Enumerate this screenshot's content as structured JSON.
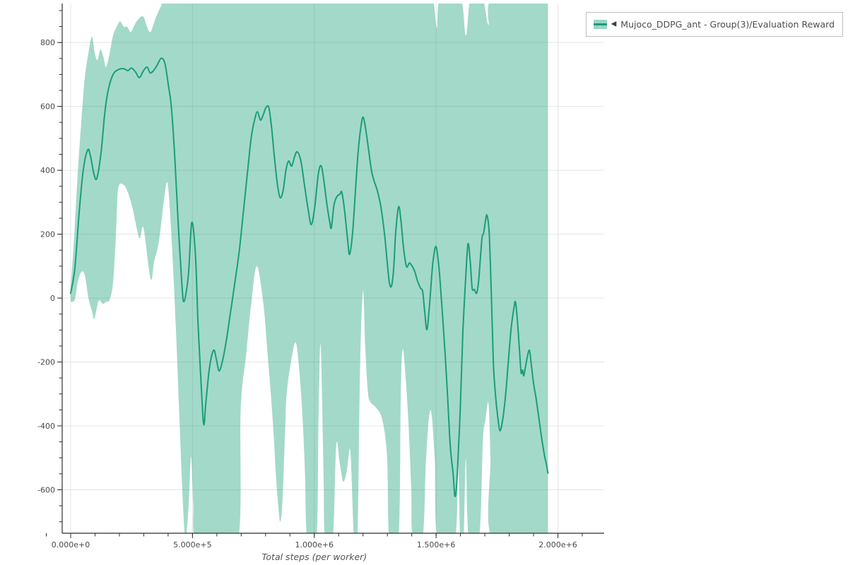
{
  "page": {
    "background": "#ffffff"
  },
  "legend": {
    "marker": "◀",
    "label": "Mujoco_DDPG_ant - Group(3)/Evaluation Reward",
    "swatch_fill": "rgba(26,161,121,0.45)",
    "swatch_line": "#1a9e78",
    "border_color": "#bdbdbd",
    "position": "top-right"
  },
  "axes": {
    "axis_color": "#2e2e2e",
    "grid_color": "#e4e4e4",
    "tick_label_color": "#4a4a4a",
    "axis_label_color": "#555555"
  },
  "chart_data": {
    "type": "line",
    "title": "",
    "xlabel": "Total steps (per worker)",
    "ylabel": "",
    "grid": true,
    "legend_position": "top-right",
    "series_name": "Mujoco_DDPG_ant - Group(3)/Evaluation Reward",
    "line_color": "#1a9e78",
    "band_color": "rgba(26,161,121,0.40)",
    "xlim": [
      -34800,
      2190000
    ],
    "ylim": [
      -736,
      922
    ],
    "xticks": {
      "major": [
        {
          "v": 0,
          "label": "0.000e+0"
        },
        {
          "v": 500000,
          "label": "5.000e+5"
        },
        {
          "v": 1000000,
          "label": "1.000e+6"
        },
        {
          "v": 1500000,
          "label": "1.500e+6"
        },
        {
          "v": 2000000,
          "label": "2.000e+6"
        }
      ],
      "minor_start": -100000,
      "minor_end": 2100000,
      "minor_step": 100000
    },
    "yticks": {
      "major": [
        {
          "v": 800,
          "label": "800"
        },
        {
          "v": 600,
          "label": "600"
        },
        {
          "v": 400,
          "label": "400"
        },
        {
          "v": 200,
          "label": "200"
        },
        {
          "v": 0,
          "label": "0"
        },
        {
          "v": -200,
          "label": "-200"
        },
        {
          "v": -400,
          "label": "-400"
        },
        {
          "v": -600,
          "label": "-600"
        }
      ],
      "minor_start": -700,
      "minor_end": 900,
      "minor_step": 50
    },
    "mean": [
      [
        0,
        15
      ],
      [
        17000,
        93
      ],
      [
        35000,
        270
      ],
      [
        52000,
        402
      ],
      [
        70000,
        464
      ],
      [
        81000,
        446
      ],
      [
        96000,
        387
      ],
      [
        108000,
        376
      ],
      [
        125000,
        457
      ],
      [
        140000,
        579
      ],
      [
        154000,
        650
      ],
      [
        174000,
        700
      ],
      [
        198000,
        716
      ],
      [
        218000,
        718
      ],
      [
        235000,
        712
      ],
      [
        250000,
        720
      ],
      [
        267000,
        707
      ],
      [
        282000,
        690
      ],
      [
        299000,
        712
      ],
      [
        314000,
        723
      ],
      [
        326000,
        705
      ],
      [
        340000,
        712
      ],
      [
        355000,
        729
      ],
      [
        372000,
        751
      ],
      [
        387000,
        734
      ],
      [
        401000,
        667
      ],
      [
        413000,
        601
      ],
      [
        427000,
        446
      ],
      [
        442000,
        225
      ],
      [
        456000,
        49
      ],
      [
        465000,
        -11
      ],
      [
        483000,
        71
      ],
      [
        497000,
        236
      ],
      [
        512000,
        137
      ],
      [
        523000,
        -84
      ],
      [
        535000,
        -261
      ],
      [
        546000,
        -395
      ],
      [
        555000,
        -327
      ],
      [
        570000,
        -217
      ],
      [
        587000,
        -163
      ],
      [
        599000,
        -195
      ],
      [
        610000,
        -228
      ],
      [
        625000,
        -190
      ],
      [
        640000,
        -128
      ],
      [
        657000,
        -40
      ],
      [
        674000,
        49
      ],
      [
        692000,
        148
      ],
      [
        709000,
        270
      ],
      [
        727000,
        402
      ],
      [
        741000,
        502
      ],
      [
        756000,
        561
      ],
      [
        767000,
        583
      ],
      [
        779000,
        557
      ],
      [
        791000,
        575
      ],
      [
        802000,
        597
      ],
      [
        814000,
        595
      ],
      [
        826000,
        524
      ],
      [
        837000,
        435
      ],
      [
        849000,
        354
      ],
      [
        860000,
        314
      ],
      [
        872000,
        336
      ],
      [
        884000,
        402
      ],
      [
        895000,
        429
      ],
      [
        907000,
        413
      ],
      [
        919000,
        442
      ],
      [
        930000,
        458
      ],
      [
        945000,
        429
      ],
      [
        959000,
        358
      ],
      [
        974000,
        281
      ],
      [
        988000,
        230
      ],
      [
        1003000,
        292
      ],
      [
        1017000,
        391
      ],
      [
        1029000,
        413
      ],
      [
        1041000,
        358
      ],
      [
        1052000,
        292
      ],
      [
        1064000,
        236
      ],
      [
        1070000,
        221
      ],
      [
        1081000,
        292
      ],
      [
        1093000,
        318
      ],
      [
        1105000,
        325
      ],
      [
        1113000,
        331
      ],
      [
        1125000,
        270
      ],
      [
        1137000,
        181
      ],
      [
        1145000,
        137
      ],
      [
        1157000,
        203
      ],
      [
        1169000,
        336
      ],
      [
        1180000,
        458
      ],
      [
        1192000,
        539
      ],
      [
        1201000,
        566
      ],
      [
        1212000,
        524
      ],
      [
        1224000,
        458
      ],
      [
        1235000,
        398
      ],
      [
        1247000,
        363
      ],
      [
        1259000,
        336
      ],
      [
        1273000,
        287
      ],
      [
        1288000,
        203
      ],
      [
        1299000,
        115
      ],
      [
        1308000,
        49
      ],
      [
        1317000,
        38
      ],
      [
        1326000,
        93
      ],
      [
        1334000,
        203
      ],
      [
        1346000,
        285
      ],
      [
        1355000,
        248
      ],
      [
        1366000,
        159
      ],
      [
        1375000,
        110
      ],
      [
        1381000,
        97
      ],
      [
        1390000,
        110
      ],
      [
        1398000,
        104
      ],
      [
        1404000,
        97
      ],
      [
        1413000,
        82
      ],
      [
        1424000,
        53
      ],
      [
        1436000,
        31
      ],
      [
        1445000,
        20
      ],
      [
        1453000,
        -40
      ],
      [
        1462000,
        -99
      ],
      [
        1471000,
        -40
      ],
      [
        1480000,
        49
      ],
      [
        1488000,
        119
      ],
      [
        1500000,
        161
      ],
      [
        1512000,
        93
      ],
      [
        1523000,
        -18
      ],
      [
        1535000,
        -150
      ],
      [
        1547000,
        -305
      ],
      [
        1558000,
        -460
      ],
      [
        1570000,
        -552
      ],
      [
        1578000,
        -621
      ],
      [
        1587000,
        -552
      ],
      [
        1599000,
        -349
      ],
      [
        1610000,
        -106
      ],
      [
        1622000,
        71
      ],
      [
        1631000,
        170
      ],
      [
        1640000,
        115
      ],
      [
        1648000,
        31
      ],
      [
        1657000,
        27
      ],
      [
        1666000,
        15
      ],
      [
        1674000,
        49
      ],
      [
        1683000,
        137
      ],
      [
        1689000,
        192
      ],
      [
        1695000,
        203
      ],
      [
        1703000,
        243
      ],
      [
        1709000,
        259
      ],
      [
        1718000,
        203
      ],
      [
        1727000,
        4
      ],
      [
        1735000,
        -201
      ],
      [
        1744000,
        -305
      ],
      [
        1753000,
        -371
      ],
      [
        1762000,
        -415
      ],
      [
        1773000,
        -382
      ],
      [
        1785000,
        -305
      ],
      [
        1797000,
        -194
      ],
      [
        1808000,
        -95
      ],
      [
        1820000,
        -29
      ],
      [
        1826000,
        -13
      ],
      [
        1834000,
        -73
      ],
      [
        1843000,
        -172
      ],
      [
        1849000,
        -234
      ],
      [
        1855000,
        -225
      ],
      [
        1860000,
        -243
      ],
      [
        1869000,
        -206
      ],
      [
        1878000,
        -172
      ],
      [
        1884000,
        -166
      ],
      [
        1892000,
        -217
      ],
      [
        1901000,
        -272
      ],
      [
        1910000,
        -312
      ],
      [
        1921000,
        -371
      ],
      [
        1933000,
        -437
      ],
      [
        1945000,
        -493
      ],
      [
        1953000,
        -521
      ],
      [
        1959000,
        -548
      ]
    ],
    "band_upper": [
      [
        0,
        31
      ],
      [
        15000,
        203
      ],
      [
        29000,
        391
      ],
      [
        44000,
        557
      ],
      [
        58000,
        690
      ],
      [
        73000,
        767
      ],
      [
        87000,
        818
      ],
      [
        99000,
        767
      ],
      [
        110000,
        745
      ],
      [
        122000,
        778
      ],
      [
        134000,
        756
      ],
      [
        145000,
        723
      ],
      [
        160000,
        767
      ],
      [
        174000,
        822
      ],
      [
        189000,
        849
      ],
      [
        203000,
        866
      ],
      [
        218000,
        849
      ],
      [
        232000,
        849
      ],
      [
        247000,
        833
      ],
      [
        262000,
        855
      ],
      [
        276000,
        871
      ],
      [
        297000,
        882
      ],
      [
        314000,
        849
      ],
      [
        328000,
        833
      ],
      [
        349000,
        877
      ],
      [
        372000,
        915
      ],
      [
        392000,
        940
      ],
      [
        600000,
        940
      ],
      [
        900000,
        940
      ],
      [
        1200000,
        940
      ],
      [
        1470000,
        940
      ],
      [
        1488000,
        940
      ],
      [
        1503000,
        845
      ],
      [
        1517000,
        940
      ],
      [
        1599000,
        940
      ],
      [
        1622000,
        822
      ],
      [
        1642000,
        940
      ],
      [
        1690000,
        940
      ],
      [
        1715000,
        855
      ],
      [
        1735000,
        940
      ],
      [
        1959000,
        940
      ]
    ],
    "band_lower": [
      [
        0,
        -12
      ],
      [
        17000,
        -5
      ],
      [
        29000,
        49
      ],
      [
        44000,
        82
      ],
      [
        58000,
        71
      ],
      [
        73000,
        0
      ],
      [
        87000,
        -40
      ],
      [
        96000,
        -66
      ],
      [
        105000,
        -40
      ],
      [
        116000,
        -7
      ],
      [
        131000,
        -18
      ],
      [
        145000,
        -12
      ],
      [
        160000,
        -5
      ],
      [
        174000,
        50
      ],
      [
        186000,
        200
      ],
      [
        195000,
        343
      ],
      [
        218000,
        354
      ],
      [
        235000,
        330
      ],
      [
        253000,
        285
      ],
      [
        282000,
        188
      ],
      [
        299000,
        219
      ],
      [
        328000,
        60
      ],
      [
        343000,
        115
      ],
      [
        363000,
        181
      ],
      [
        384000,
        314
      ],
      [
        398000,
        358
      ],
      [
        413000,
        203
      ],
      [
        430000,
        -62
      ],
      [
        445000,
        -349
      ],
      [
        459000,
        -614
      ],
      [
        471000,
        -750
      ],
      [
        485000,
        -640
      ],
      [
        494000,
        -497
      ],
      [
        503000,
        -640
      ],
      [
        512000,
        -750
      ],
      [
        600000,
        -750
      ],
      [
        689000,
        -750
      ],
      [
        698000,
        -349
      ],
      [
        721000,
        -172
      ],
      [
        741000,
        -18
      ],
      [
        764000,
        100
      ],
      [
        791000,
        -18
      ],
      [
        808000,
        -172
      ],
      [
        822000,
        -305
      ],
      [
        834000,
        -437
      ],
      [
        843000,
        -560
      ],
      [
        851000,
        -640
      ],
      [
        860000,
        -700
      ],
      [
        869000,
        -640
      ],
      [
        880000,
        -420
      ],
      [
        886000,
        -305
      ],
      [
        901000,
        -217
      ],
      [
        924000,
        -139
      ],
      [
        942000,
        -261
      ],
      [
        953000,
        -393
      ],
      [
        962000,
        -550
      ],
      [
        971000,
        -750
      ],
      [
        1009000,
        -750
      ],
      [
        1017000,
        -400
      ],
      [
        1026000,
        -146
      ],
      [
        1038000,
        -550
      ],
      [
        1044000,
        -750
      ],
      [
        1076000,
        -750
      ],
      [
        1090000,
        -460
      ],
      [
        1105000,
        -520
      ],
      [
        1119000,
        -575
      ],
      [
        1134000,
        -540
      ],
      [
        1148000,
        -480
      ],
      [
        1163000,
        -750
      ],
      [
        1177000,
        -750
      ],
      [
        1186000,
        -300
      ],
      [
        1192000,
        -100
      ],
      [
        1201000,
        22
      ],
      [
        1209000,
        -150
      ],
      [
        1221000,
        -300
      ],
      [
        1235000,
        -330
      ],
      [
        1250000,
        -340
      ],
      [
        1279000,
        -380
      ],
      [
        1299000,
        -500
      ],
      [
        1308000,
        -750
      ],
      [
        1346000,
        -750
      ],
      [
        1355000,
        -300
      ],
      [
        1363000,
        -161
      ],
      [
        1375000,
        -250
      ],
      [
        1387000,
        -400
      ],
      [
        1398000,
        -600
      ],
      [
        1404000,
        -750
      ],
      [
        1445000,
        -750
      ],
      [
        1459000,
        -500
      ],
      [
        1477000,
        -350
      ],
      [
        1494000,
        -500
      ],
      [
        1506000,
        -750
      ],
      [
        1578000,
        -750
      ],
      [
        1590000,
        -497
      ],
      [
        1599000,
        -750
      ],
      [
        1613000,
        -750
      ],
      [
        1622000,
        -504
      ],
      [
        1634000,
        -750
      ],
      [
        1677000,
        -750
      ],
      [
        1692000,
        -450
      ],
      [
        1703000,
        -380
      ],
      [
        1715000,
        -330
      ],
      [
        1723000,
        -500
      ],
      [
        1729000,
        -750
      ],
      [
        1918000,
        -750
      ],
      [
        1959000,
        -750
      ]
    ]
  }
}
